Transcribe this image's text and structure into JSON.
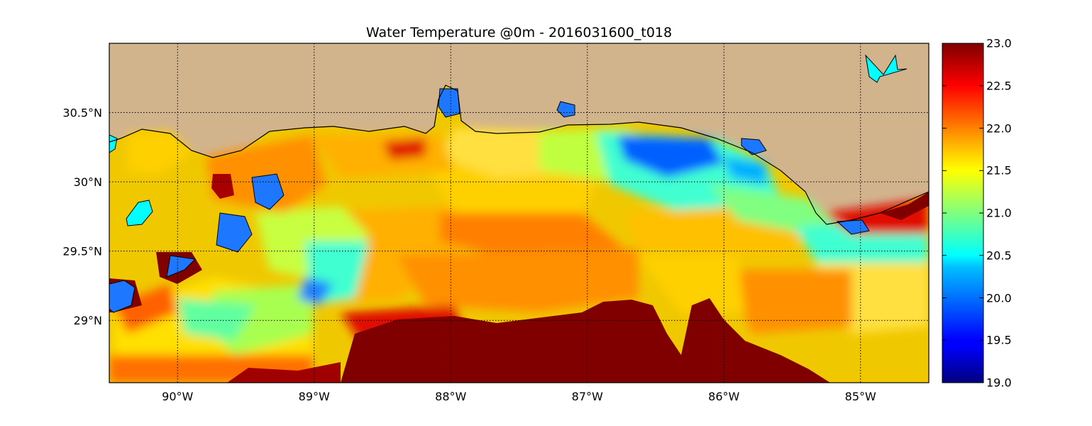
{
  "title": "Water Temperature @0m - 2016031600_t018",
  "map": {
    "lon_range": [
      -90.5,
      -84.5
    ],
    "lat_range": [
      28.55,
      31.0
    ],
    "lon_ticks": [
      {
        "value": -90,
        "label": "90°W"
      },
      {
        "value": -89,
        "label": "89°W"
      },
      {
        "value": -88,
        "label": "88°W"
      },
      {
        "value": -87,
        "label": "87°W"
      },
      {
        "value": -86,
        "label": "86°W"
      },
      {
        "value": -85,
        "label": "85°W"
      }
    ],
    "lat_ticks": [
      {
        "value": 30.5,
        "label": "30.5°N"
      },
      {
        "value": 30.0,
        "label": "30°N"
      },
      {
        "value": 29.5,
        "label": "29.5°N"
      },
      {
        "value": 29.0,
        "label": "29°N"
      }
    ],
    "grid": true,
    "land_color": "#d2b48c",
    "lake_color": "#00ffff",
    "colormap": "jet"
  },
  "colorbar": {
    "min": 19.0,
    "max": 23.0,
    "ticks": [
      "19.0",
      "19.5",
      "20.0",
      "20.5",
      "21.0",
      "21.5",
      "22.0",
      "22.5",
      "23.0"
    ]
  }
}
